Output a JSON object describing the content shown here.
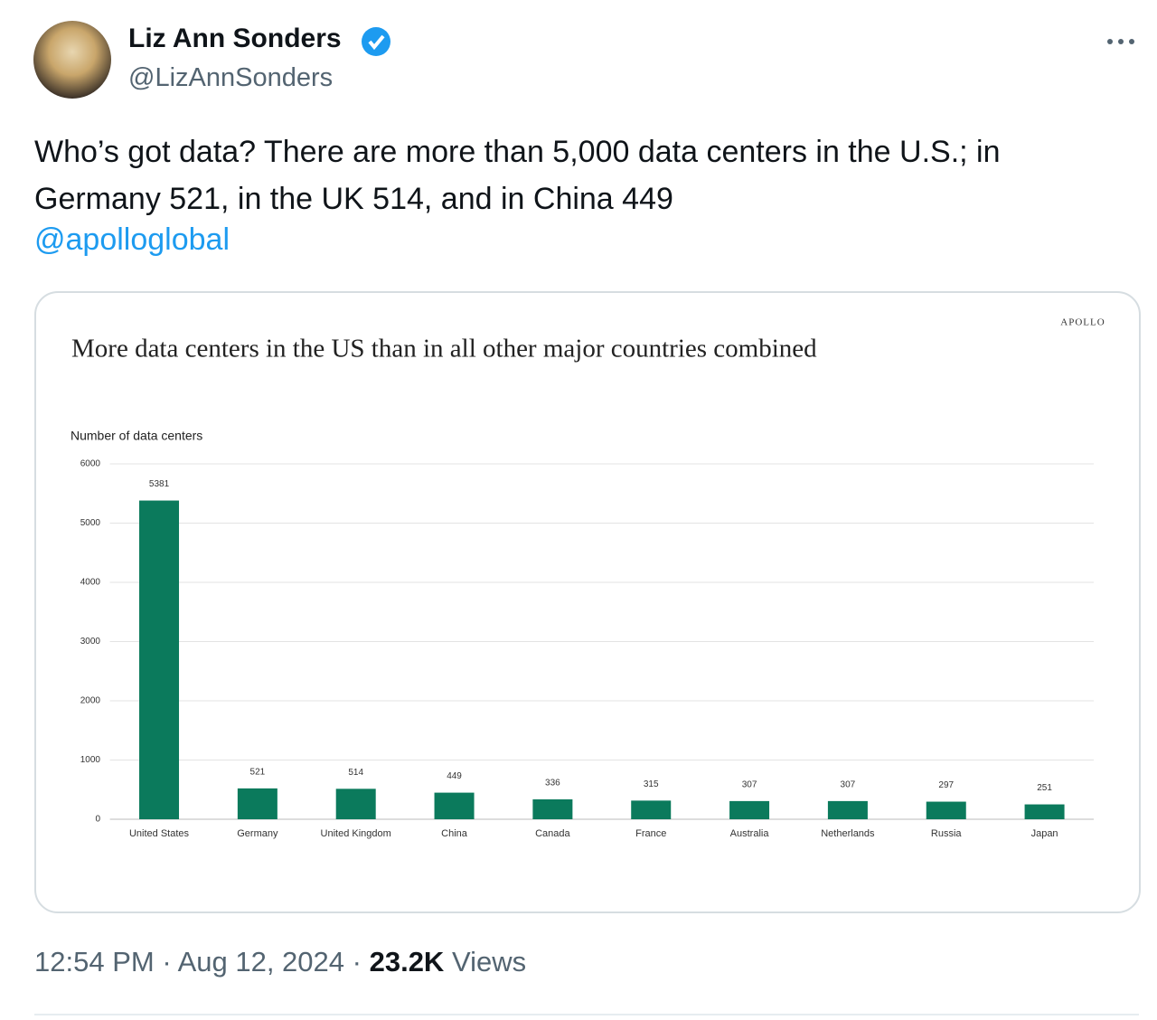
{
  "author": {
    "name": "Liz Ann Sonders",
    "handle": "@LizAnnSonders"
  },
  "tweet": {
    "text": "Who’s got data? There are more than 5,000 data centers in the U.S.; in Germany 521, in the UK 514, and in China 449",
    "mention": "@apolloglobal"
  },
  "footer": {
    "time": "12:54 PM",
    "separator": "·",
    "date": "Aug 12, 2024",
    "views_count": "23.2K",
    "views_label": "Views"
  },
  "chart_data": {
    "type": "bar",
    "brand": "APOLLO",
    "title": "More data centers in the US than in all other major countries combined",
    "y_label": "Number of data centers",
    "categories": [
      "United States",
      "Germany",
      "United Kingdom",
      "China",
      "Canada",
      "France",
      "Australia",
      "Netherlands",
      "Russia",
      "Japan"
    ],
    "values": [
      5381,
      521,
      514,
      449,
      336,
      315,
      307,
      307,
      297,
      251
    ],
    "color": "#0b7a5c",
    "ylim": [
      0,
      6000
    ],
    "yticks": [
      0,
      1000,
      2000,
      3000,
      4000,
      5000,
      6000
    ],
    "grid": true
  }
}
